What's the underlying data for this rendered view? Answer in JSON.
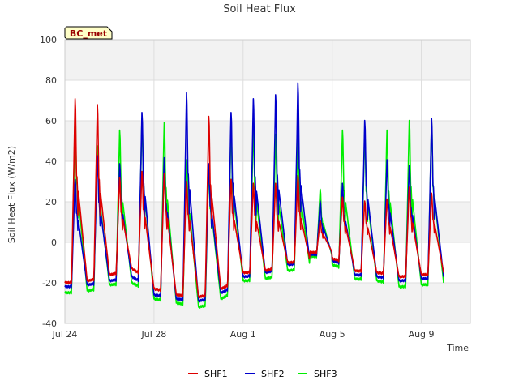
{
  "chart_data": {
    "type": "line",
    "title": "Soil Heat Flux",
    "xlabel": "Time",
    "ylabel": "Soil Heat Flux (W/m2)",
    "site_label": "BC_met",
    "xlim": [
      0,
      18.2
    ],
    "ylim": [
      -40,
      100
    ],
    "yticks": [
      -40,
      -20,
      0,
      20,
      40,
      60,
      80,
      100
    ],
    "xticks": [
      {
        "label": "Jul 24",
        "day": 0
      },
      {
        "label": "Jul 28",
        "day": 4
      },
      {
        "label": "Aug 1",
        "day": 8
      },
      {
        "label": "Aug 5",
        "day": 12
      },
      {
        "label": "Aug 9",
        "day": 16
      }
    ],
    "legend_position": "bottom-center",
    "colors": {
      "SHF1": "#dd0000",
      "SHF2": "#0000cc",
      "SHF3": "#00ee00"
    },
    "days": [
      {
        "t": 0,
        "peak": [
          73,
          32,
          65
        ],
        "pre": [
          -20,
          -22,
          -25
        ],
        "post": [
          -19,
          -21,
          -24
        ]
      },
      {
        "t": 1,
        "peak": [
          70,
          44,
          49
        ],
        "pre": [
          -19,
          -21,
          -24
        ],
        "post": [
          -16,
          -19,
          -21
        ]
      },
      {
        "t": 2,
        "peak": [
          33,
          40,
          57
        ],
        "pre": [
          -16,
          -19,
          -21
        ],
        "post": [
          -13,
          -17,
          -20
        ]
      },
      {
        "t": 3,
        "peak": [
          36,
          66,
          63
        ],
        "pre": [
          -13,
          -17,
          -20
        ],
        "post": [
          -23,
          -26,
          -28
        ]
      },
      {
        "t": 4,
        "peak": [
          35,
          43,
          61
        ],
        "pre": [
          -23,
          -26,
          -28
        ],
        "post": [
          -26,
          -28,
          -30
        ]
      },
      {
        "t": 5,
        "peak": [
          31,
          76,
          42
        ],
        "pre": [
          -26,
          -28,
          -30
        ],
        "post": [
          -27,
          -29,
          -32
        ]
      },
      {
        "t": 6,
        "peak": [
          64,
          40,
          37
        ],
        "pre": [
          -27,
          -29,
          -32
        ],
        "post": [
          -23,
          -25,
          -28
        ]
      },
      {
        "t": 7,
        "peak": [
          32,
          66,
          59
        ],
        "pre": [
          -23,
          -25,
          -28
        ],
        "post": [
          -15,
          -17,
          -19
        ]
      },
      {
        "t": 8,
        "peak": [
          30,
          73,
          59
        ],
        "pre": [
          -15,
          -17,
          -19
        ],
        "post": [
          -14,
          -15,
          -18
        ]
      },
      {
        "t": 9,
        "peak": [
          30,
          75,
          55
        ],
        "pre": [
          -14,
          -15,
          -18
        ],
        "post": [
          -10,
          -11,
          -14
        ]
      },
      {
        "t": 10,
        "peak": [
          34,
          81,
          58
        ],
        "pre": [
          -10,
          -11,
          -14
        ],
        "post": [
          -9,
          -10,
          -12
        ]
      },
      {
        "t": 11,
        "peak": [
          11,
          21,
          27
        ],
        "pre": [
          -5,
          -6,
          -7
        ],
        "post": [
          -5,
          -6,
          -7
        ]
      },
      {
        "t": 12,
        "peak": [
          23,
          30,
          57
        ],
        "pre": [
          -8,
          -9,
          -11
        ],
        "post": [
          -13,
          -15,
          -17
        ]
      },
      {
        "t": 13,
        "peak": [
          21,
          62,
          56
        ],
        "pre": [
          -14,
          -16,
          -18
        ],
        "post": [
          -15,
          -17,
          -19
        ]
      },
      {
        "t": 14,
        "peak": [
          22,
          42,
          57
        ],
        "pre": [
          -15,
          -17,
          -19
        ],
        "post": [
          -17,
          -19,
          -22
        ]
      },
      {
        "t": 15,
        "peak": [
          28,
          39,
          62
        ],
        "pre": [
          -17,
          -19,
          -22
        ],
        "post": [
          -16,
          -18,
          -21
        ]
      },
      {
        "t": 16,
        "peak": [
          25,
          63,
          61
        ],
        "pre": [
          -16,
          -18,
          -21
        ],
        "post": [
          -15,
          -17,
          -20
        ]
      }
    ],
    "series": [
      {
        "name": "SHF1"
      },
      {
        "name": "SHF2"
      },
      {
        "name": "SHF3"
      }
    ]
  }
}
